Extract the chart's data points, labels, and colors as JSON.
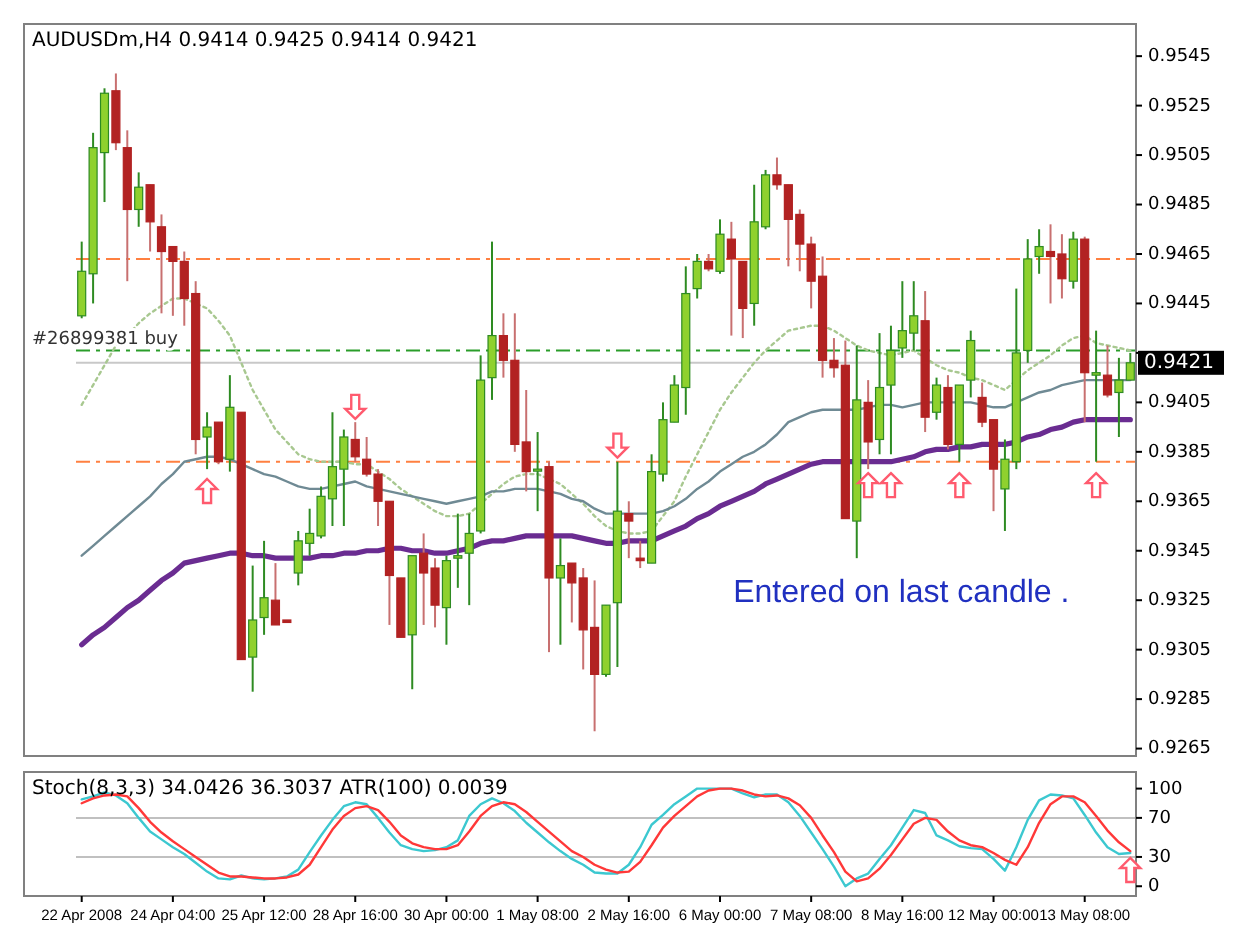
{
  "chart_data": [
    {
      "type": "candlestick",
      "title": "AUDUSDm,H4 0.9414 0.9425 0.9414 0.9421",
      "categories": [
        null,
        null,
        null,
        null,
        null,
        null,
        null,
        null,
        null,
        null,
        null,
        null,
        null,
        null,
        null,
        null,
        null,
        null,
        null,
        null,
        null,
        null,
        null,
        null,
        null,
        null,
        null,
        null,
        null,
        null,
        null,
        null,
        null,
        null,
        null,
        null,
        null,
        null,
        null,
        null,
        null,
        null,
        null,
        null,
        null,
        null,
        null,
        null,
        null,
        null,
        null,
        null,
        null,
        null,
        null,
        null,
        null,
        null,
        null,
        null,
        null,
        null,
        null,
        null,
        null,
        null,
        null,
        null,
        null,
        null,
        null,
        null,
        null,
        null,
        null,
        null,
        null,
        null,
        null,
        null,
        null,
        null,
        null,
        null,
        null,
        null,
        null,
        null,
        null,
        null,
        null,
        null,
        null
      ],
      "ohlc": [
        [
          0.944,
          0.947,
          0.9439,
          0.9458
        ],
        [
          0.9457,
          0.9514,
          0.9445,
          0.9508
        ],
        [
          0.9506,
          0.9532,
          0.9486,
          0.953
        ],
        [
          0.9531,
          0.9538,
          0.9507,
          0.951
        ],
        [
          0.9508,
          0.9515,
          0.9454,
          0.9483
        ],
        [
          0.9483,
          0.9498,
          0.9476,
          0.9492
        ],
        [
          0.9493,
          0.9493,
          0.9466,
          0.9478
        ],
        [
          0.9476,
          0.9481,
          0.9441,
          0.9466
        ],
        [
          0.9468,
          0.9468,
          0.944,
          0.9462
        ],
        [
          0.9462,
          0.9466,
          0.9436,
          0.9447
        ],
        [
          0.9449,
          0.9454,
          0.9384,
          0.939
        ],
        [
          0.9391,
          0.9401,
          0.9378,
          0.9395
        ],
        [
          0.9397,
          0.9397,
          0.938,
          0.9381
        ],
        [
          0.9382,
          0.9416,
          0.9377,
          0.9403
        ],
        [
          0.9401,
          0.9401,
          0.9301,
          0.9301
        ],
        [
          0.9302,
          0.9339,
          0.9288,
          0.9317
        ],
        [
          0.9318,
          0.9349,
          0.9311,
          0.9326
        ],
        [
          0.9325,
          0.934,
          0.9315,
          0.9315
        ],
        [
          0.9317,
          0.9317,
          0.9316,
          0.9316
        ],
        [
          0.9336,
          0.9353,
          0.9331,
          0.9349
        ],
        [
          0.9348,
          0.9362,
          0.9343,
          0.9352
        ],
        [
          0.9351,
          0.9371,
          0.935,
          0.9367
        ],
        [
          0.9366,
          0.9401,
          0.9355,
          0.9379
        ],
        [
          0.9378,
          0.9394,
          0.9355,
          0.9391
        ],
        [
          0.939,
          0.9397,
          0.9381,
          0.9383
        ],
        [
          0.9382,
          0.9391,
          0.9375,
          0.9376
        ],
        [
          0.9376,
          0.9378,
          0.9355,
          0.9365
        ],
        [
          0.9365,
          0.9365,
          0.9315,
          0.9335
        ],
        [
          0.9334,
          0.9334,
          0.931,
          0.931
        ],
        [
          0.9311,
          0.9343,
          0.9289,
          0.9343
        ],
        [
          0.9344,
          0.9352,
          0.9315,
          0.9336
        ],
        [
          0.9338,
          0.9342,
          0.9314,
          0.9323
        ],
        [
          0.9322,
          0.9343,
          0.9307,
          0.9341
        ],
        [
          0.9342,
          0.936,
          0.933,
          0.9343
        ],
        [
          0.9344,
          0.936,
          0.9323,
          0.9352
        ],
        [
          0.9353,
          0.9424,
          0.9352,
          0.9414
        ],
        [
          0.9415,
          0.947,
          0.9406,
          0.9432
        ],
        [
          0.9432,
          0.9441,
          0.9415,
          0.9422
        ],
        [
          0.9422,
          0.9441,
          0.9385,
          0.9388
        ],
        [
          0.9389,
          0.941,
          0.9369,
          0.9377
        ],
        [
          0.9378,
          0.9393,
          0.9361,
          0.9378
        ],
        [
          0.9379,
          0.9381,
          0.9304,
          0.9334
        ],
        [
          0.9334,
          0.935,
          0.9307,
          0.9339
        ],
        [
          0.934,
          0.934,
          0.9316,
          0.9332
        ],
        [
          0.9334,
          0.9338,
          0.9297,
          0.9313
        ],
        [
          0.9314,
          0.9333,
          0.9272,
          0.9295
        ],
        [
          0.9295,
          0.9323,
          0.9294,
          0.9323
        ],
        [
          0.9324,
          0.9381,
          0.9298,
          0.9361
        ],
        [
          0.936,
          0.9365,
          0.9342,
          0.9357
        ],
        [
          0.9342,
          0.9349,
          0.9338,
          0.9341
        ],
        [
          0.934,
          0.9384,
          0.934,
          0.9377
        ],
        [
          0.9376,
          0.9405,
          0.9373,
          0.9398
        ],
        [
          0.9397,
          0.9416,
          0.9397,
          0.9412
        ],
        [
          0.9411,
          0.946,
          0.94,
          0.9449
        ],
        [
          0.9451,
          0.9465,
          0.9447,
          0.9462
        ],
        [
          0.9462,
          0.9465,
          0.9458,
          0.9459
        ],
        [
          0.9458,
          0.9479,
          0.9457,
          0.9473
        ],
        [
          0.9471,
          0.9478,
          0.9432,
          0.9463
        ],
        [
          0.9462,
          0.9462,
          0.9431,
          0.9443
        ],
        [
          0.9445,
          0.9493,
          0.9436,
          0.9478
        ],
        [
          0.9476,
          0.9499,
          0.9475,
          0.9497
        ],
        [
          0.9497,
          0.9504,
          0.9491,
          0.9493
        ],
        [
          0.9493,
          0.9493,
          0.946,
          0.9479
        ],
        [
          0.9481,
          0.9483,
          0.9458,
          0.9469
        ],
        [
          0.9469,
          0.9472,
          0.9443,
          0.9454
        ],
        [
          0.9456,
          0.9464,
          0.9415,
          0.9422
        ],
        [
          0.9422,
          0.9431,
          0.9415,
          0.9419
        ],
        [
          0.942,
          0.943,
          0.9358,
          0.9358
        ],
        [
          0.9357,
          0.9428,
          0.9342,
          0.9406
        ],
        [
          0.9405,
          0.9414,
          0.9378,
          0.9389
        ],
        [
          0.939,
          0.9433,
          0.9384,
          0.9411
        ],
        [
          0.9412,
          0.9436,
          0.9384,
          0.9426
        ],
        [
          0.9427,
          0.9454,
          0.9423,
          0.9434
        ],
        [
          0.9433,
          0.9454,
          0.9426,
          0.944
        ],
        [
          0.9438,
          0.945,
          0.9393,
          0.9399
        ],
        [
          0.9401,
          0.9415,
          0.9398,
          0.9412
        ],
        [
          0.9411,
          0.9416,
          0.9386,
          0.9388
        ],
        [
          0.9388,
          0.9412,
          0.9381,
          0.9412
        ],
        [
          0.9414,
          0.9434,
          0.9407,
          0.943
        ],
        [
          0.9407,
          0.9413,
          0.9395,
          0.9397
        ],
        [
          0.9398,
          0.9398,
          0.9361,
          0.9378
        ],
        [
          0.937,
          0.939,
          0.9353,
          0.9382
        ],
        [
          0.9381,
          0.9451,
          0.9378,
          0.9425
        ],
        [
          0.9426,
          0.9471,
          0.9421,
          0.9463
        ],
        [
          0.9464,
          0.9475,
          0.9457,
          0.9468
        ],
        [
          0.9466,
          0.9477,
          0.9445,
          0.9464
        ],
        [
          0.9465,
          0.9473,
          0.9447,
          0.9455
        ],
        [
          0.9454,
          0.9474,
          0.9451,
          0.9471
        ],
        [
          0.9471,
          0.9472,
          0.9397,
          0.9417
        ],
        [
          0.9416,
          0.9434,
          0.9381,
          0.9417
        ],
        [
          0.9416,
          0.9428,
          0.9407,
          0.9408
        ],
        [
          0.9409,
          0.9423,
          0.9391,
          0.9414
        ],
        [
          0.9414,
          0.9425,
          0.9414,
          0.9421
        ]
      ],
      "series": [
        {
          "type": "line",
          "color": "#a8c890",
          "line_style": "dotted",
          "values": [
            0.9404,
            0.9412,
            0.942,
            0.9428,
            0.9432,
            0.9437,
            0.9441,
            0.9444,
            0.9447,
            0.9447,
            0.9445,
            0.9443,
            0.9438,
            0.9432,
            0.9421,
            0.941,
            0.9402,
            0.9394,
            0.9389,
            0.9384,
            0.9382,
            0.9381,
            0.9381,
            0.9381,
            0.938,
            0.938,
            0.9377,
            0.9374,
            0.937,
            0.9367,
            0.9364,
            0.9361,
            0.9359,
            0.9359,
            0.936,
            0.9364,
            0.9368,
            0.9372,
            0.9375,
            0.9376,
            0.9376,
            0.9374,
            0.9372,
            0.9368,
            0.9364,
            0.9359,
            0.9355,
            0.9353,
            0.9352,
            0.9352,
            0.9353,
            0.9359,
            0.9365,
            0.9375,
            0.9384,
            0.9393,
            0.9402,
            0.9409,
            0.9415,
            0.9421,
            0.9426,
            0.943,
            0.9434,
            0.9435,
            0.9436,
            0.9436,
            0.9434,
            0.9431,
            0.9428,
            0.9426,
            0.9425,
            0.9424,
            0.9425,
            0.9426,
            0.9423,
            0.942,
            0.9418,
            0.9417,
            0.9415,
            0.9414,
            0.9412,
            0.941,
            0.9414,
            0.9418,
            0.9421,
            0.9424,
            0.9428,
            0.9431,
            0.9432,
            0.9429,
            0.9428,
            0.9427,
            0.9426
          ]
        },
        {
          "type": "line",
          "color": "#6f8a94",
          "line_style": "solid",
          "values": [
            0.9343,
            0.9347,
            0.9351,
            0.9355,
            0.9359,
            0.9363,
            0.9367,
            0.9372,
            0.9376,
            0.9381,
            0.9382,
            0.9383,
            0.9383,
            0.9382,
            0.938,
            0.9378,
            0.9376,
            0.9375,
            0.9373,
            0.9371,
            0.937,
            0.937,
            0.9371,
            0.9372,
            0.9373,
            0.9371,
            0.937,
            0.9369,
            0.9368,
            0.9367,
            0.9366,
            0.9365,
            0.9364,
            0.9365,
            0.9366,
            0.9367,
            0.9369,
            0.9369,
            0.937,
            0.937,
            0.937,
            0.9369,
            0.9368,
            0.9366,
            0.9365,
            0.9362,
            0.936,
            0.936,
            0.936,
            0.936,
            0.936,
            0.9361,
            0.9363,
            0.9366,
            0.937,
            0.9373,
            0.9377,
            0.938,
            0.9383,
            0.9385,
            0.9388,
            0.9392,
            0.9397,
            0.9399,
            0.9401,
            0.9402,
            0.9402,
            0.9402,
            0.9402,
            0.9403,
            0.9404,
            0.9404,
            0.9403,
            0.9404,
            0.9405,
            0.9405,
            0.9405,
            0.9405,
            0.9405,
            0.9404,
            0.9403,
            0.9403,
            0.9405,
            0.9407,
            0.9409,
            0.941,
            0.9412,
            0.9413,
            0.9414,
            0.9414,
            0.9414,
            0.9414,
            0.9414
          ]
        },
        {
          "type": "line",
          "color": "#6a2c91",
          "line_style": "solid",
          "values": [
            0.9307,
            0.9311,
            0.9314,
            0.9318,
            0.9322,
            0.9325,
            0.9329,
            0.9333,
            0.9336,
            0.934,
            0.9341,
            0.9342,
            0.9343,
            0.9344,
            0.9344,
            0.9343,
            0.9343,
            0.9342,
            0.9342,
            0.9342,
            0.9342,
            0.9343,
            0.9343,
            0.9344,
            0.9344,
            0.9345,
            0.9345,
            0.9346,
            0.9346,
            0.9345,
            0.9345,
            0.9344,
            0.9344,
            0.9345,
            0.9346,
            0.9348,
            0.9349,
            0.9349,
            0.935,
            0.9351,
            0.9351,
            0.9351,
            0.9351,
            0.9351,
            0.935,
            0.9349,
            0.9348,
            0.9348,
            0.9349,
            0.9349,
            0.9349,
            0.9351,
            0.9353,
            0.9355,
            0.9358,
            0.936,
            0.9363,
            0.9365,
            0.9367,
            0.9369,
            0.9372,
            0.9374,
            0.9376,
            0.9378,
            0.938,
            0.9381,
            0.9381,
            0.9381,
            0.9381,
            0.9381,
            0.9381,
            0.9381,
            0.9382,
            0.9383,
            0.9385,
            0.9386,
            0.9386,
            0.9387,
            0.9387,
            0.9388,
            0.9388,
            0.9388,
            0.9389,
            0.9391,
            0.9392,
            0.9394,
            0.9395,
            0.9397,
            0.9398,
            0.9398,
            0.9398,
            0.9398,
            0.9398
          ]
        }
      ],
      "ylim": [
        0.9262,
        0.9558
      ],
      "yticks": [
        0.9265,
        0.9285,
        0.9305,
        0.9325,
        0.9345,
        0.9365,
        0.9385,
        0.9405,
        {
          "value": 0.9425,
          "label": null
        },
        0.9445,
        0.9465,
        0.9485,
        0.9505,
        0.9525,
        0.9545
      ],
      "tick_labels": "y",
      "ref_lines": [
        {
          "axis": "y",
          "value": 0.9463,
          "color": "#ff8040",
          "line_style": "dashed"
        },
        {
          "axis": "y",
          "value": 0.9381,
          "color": "#ff8040",
          "line_style": "dashed"
        },
        {
          "axis": "y",
          "value": 0.9426,
          "color": "#2a9d2a",
          "line_style": "dashed",
          "label": "#26899381 buy"
        },
        {
          "axis": "y",
          "value": 0.9421,
          "color": "#c8c8c8",
          "line_style": "solid",
          "label": "0.9421"
        }
      ],
      "annotations": [
        "Entered on last candle ."
      ]
    },
    {
      "type": "line",
      "title": "Stoch(8,3,3) 34.0426 36.3037 ATR(100) 0.0039",
      "categories": [
        "22 Apr 2008",
        null,
        null,
        null,
        null,
        null,
        null,
        null,
        "24 Apr 04:00",
        null,
        null,
        null,
        null,
        null,
        null,
        null,
        "25 Apr 12:00",
        null,
        null,
        null,
        null,
        null,
        null,
        null,
        "28 Apr 16:00",
        null,
        null,
        null,
        null,
        null,
        null,
        null,
        "30 Apr 00:00",
        null,
        null,
        null,
        null,
        null,
        null,
        null,
        "1 May 08:00",
        null,
        null,
        null,
        null,
        null,
        null,
        null,
        "2 May 16:00",
        null,
        null,
        null,
        null,
        null,
        null,
        null,
        "6 May 00:00",
        null,
        null,
        null,
        null,
        null,
        null,
        null,
        "7 May 08:00",
        null,
        null,
        null,
        null,
        null,
        null,
        null,
        "8 May 16:00",
        null,
        null,
        null,
        null,
        null,
        null,
        null,
        "12 May 00:00",
        null,
        null,
        null,
        null,
        null,
        null,
        null,
        "13 May 08:00",
        null,
        null,
        null,
        null
      ],
      "series": [
        {
          "color": "#3cc8d0",
          "values": [
            89,
            92,
            96,
            93,
            85,
            70,
            56,
            48,
            40,
            33,
            24,
            15,
            8,
            7,
            11,
            8,
            7,
            8,
            10,
            17,
            35,
            52,
            68,
            82,
            86,
            84,
            70,
            55,
            42,
            38,
            36,
            37,
            40,
            47,
            72,
            84,
            90,
            85,
            77,
            65,
            55,
            45,
            36,
            28,
            22,
            14,
            13,
            13,
            22,
            40,
            63,
            73,
            84,
            92,
            100,
            100,
            100,
            100,
            95,
            91,
            94,
            94,
            86,
            72,
            55,
            38,
            20,
            0,
            8,
            13,
            28,
            42,
            60,
            78,
            75,
            52,
            47,
            41,
            39,
            38,
            28,
            16,
            40,
            68,
            88,
            94,
            93,
            90,
            73,
            55,
            40,
            33,
            34
          ]
        },
        {
          "color": "#ff3838",
          "values": [
            85,
            90,
            93,
            94,
            92,
            80,
            66,
            55,
            46,
            38,
            30,
            22,
            14,
            10,
            10,
            9,
            8,
            8,
            9,
            12,
            22,
            40,
            58,
            72,
            80,
            82,
            78,
            66,
            52,
            44,
            40,
            38,
            38,
            42,
            56,
            72,
            82,
            86,
            84,
            76,
            66,
            56,
            46,
            36,
            30,
            22,
            17,
            14,
            15,
            25,
            42,
            60,
            72,
            82,
            92,
            98,
            100,
            100,
            98,
            94,
            92,
            93,
            90,
            83,
            70,
            52,
            35,
            15,
            5,
            8,
            18,
            32,
            48,
            64,
            70,
            68,
            56,
            47,
            42,
            40,
            34,
            27,
            22,
            40,
            65,
            84,
            92,
            92,
            86,
            72,
            57,
            45,
            36
          ]
        }
      ],
      "ylim": [
        -10,
        117
      ],
      "yticks": [
        0,
        30,
        70,
        100
      ],
      "ref_lines": [
        {
          "axis": "y",
          "value": 30,
          "color": "#c0c0c0",
          "line_style": "solid"
        },
        {
          "axis": "y",
          "value": 70,
          "color": "#c0c0c0",
          "line_style": "solid"
        }
      ]
    }
  ]
}
